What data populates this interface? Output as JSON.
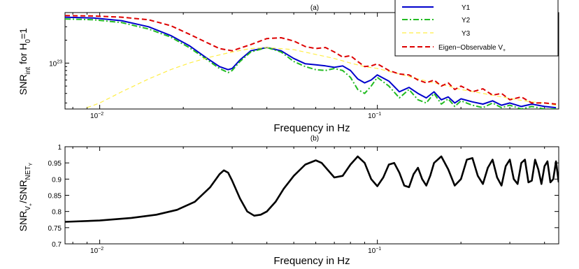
{
  "chart_data": [
    {
      "type": "line",
      "panel_label": "(a)",
      "xlabel": "Frequency in Hz",
      "ylabel_parts": {
        "main": "SNR",
        "sub1": "int",
        "mid": " for H",
        "sub2": "0",
        "tail": "=1"
      },
      "x_scale": "log",
      "y_scale": "log",
      "xlim": [
        0.0075,
        0.45
      ],
      "ylim": [
        0.25,
        4.6
      ],
      "y_unit_note": "values in units of 10^23",
      "x_ticks": [
        {
          "value": 0.01,
          "base": "10",
          "exp": "−2"
        },
        {
          "value": 0.1,
          "base": "10",
          "exp": "−1"
        }
      ],
      "y_ticks": [
        {
          "value": 1,
          "base": "10",
          "exp": "23"
        }
      ],
      "grid": false,
      "legend_position": "top-right",
      "legend": [
        "Y1",
        "Y2",
        "Y3",
        "Eigen−Observable V"
      ],
      "legend_last_subscript": "+",
      "series": [
        {
          "name": "Y1",
          "color": "#0000cc",
          "dash": "solid",
          "x": [
            0.0075,
            0.0095,
            0.012,
            0.015,
            0.018,
            0.021,
            0.024,
            0.027,
            0.029,
            0.03,
            0.032,
            0.035,
            0.04,
            0.045,
            0.05,
            0.055,
            0.06,
            0.065,
            0.07,
            0.075,
            0.08,
            0.085,
            0.09,
            0.095,
            0.1,
            0.11,
            0.12,
            0.13,
            0.14,
            0.15,
            0.16,
            0.17,
            0.18,
            0.19,
            0.2,
            0.22,
            0.24,
            0.26,
            0.28,
            0.3,
            0.33,
            0.36,
            0.4,
            0.44
          ],
          "y": [
            4.0,
            3.9,
            3.6,
            3.0,
            2.3,
            1.7,
            1.2,
            0.9,
            0.82,
            0.85,
            1.1,
            1.45,
            1.6,
            1.45,
            1.15,
            0.98,
            0.95,
            0.92,
            0.88,
            0.92,
            0.8,
            0.62,
            0.55,
            0.6,
            0.7,
            0.58,
            0.42,
            0.48,
            0.4,
            0.35,
            0.42,
            0.33,
            0.36,
            0.3,
            0.34,
            0.31,
            0.29,
            0.32,
            0.28,
            0.3,
            0.27,
            0.29,
            0.27,
            0.26
          ]
        },
        {
          "name": "Y2",
          "color": "#22bb22",
          "dash": "dashdot",
          "x": [
            0.0075,
            0.0095,
            0.012,
            0.015,
            0.018,
            0.021,
            0.024,
            0.027,
            0.029,
            0.03,
            0.032,
            0.035,
            0.04,
            0.045,
            0.05,
            0.055,
            0.06,
            0.065,
            0.07,
            0.075,
            0.08,
            0.085,
            0.09,
            0.095,
            0.1,
            0.11,
            0.12,
            0.13,
            0.14,
            0.15,
            0.16,
            0.17,
            0.18,
            0.19,
            0.2,
            0.22,
            0.24,
            0.26,
            0.28,
            0.3,
            0.33,
            0.36,
            0.4,
            0.44
          ],
          "y": [
            3.8,
            3.7,
            3.4,
            2.8,
            2.2,
            1.6,
            1.15,
            0.85,
            0.75,
            0.8,
            1.05,
            1.4,
            1.6,
            1.4,
            1.05,
            0.9,
            0.82,
            0.8,
            0.85,
            0.8,
            0.65,
            0.45,
            0.4,
            0.5,
            0.65,
            0.5,
            0.35,
            0.45,
            0.33,
            0.3,
            0.4,
            0.29,
            0.34,
            0.27,
            0.32,
            0.28,
            0.26,
            0.3,
            0.26,
            0.28,
            0.25,
            0.27,
            0.25,
            0.25
          ]
        },
        {
          "name": "Y3",
          "color": "#ffee44",
          "dash": "dashed",
          "x": [
            0.009,
            0.01,
            0.012,
            0.015,
            0.018,
            0.021,
            0.025,
            0.03,
            0.035,
            0.04,
            0.05,
            0.06,
            0.07,
            0.08,
            0.09,
            0.1,
            0.12,
            0.14,
            0.16,
            0.18,
            0.2,
            0.24,
            0.28,
            0.32,
            0.36,
            0.4,
            0.44
          ],
          "y": [
            0.26,
            0.3,
            0.42,
            0.62,
            0.82,
            1.0,
            1.2,
            1.4,
            1.55,
            1.6,
            1.5,
            1.3,
            1.15,
            1.0,
            0.9,
            0.85,
            0.72,
            0.62,
            0.55,
            0.5,
            0.45,
            0.4,
            0.36,
            0.33,
            0.31,
            0.3,
            0.28
          ]
        },
        {
          "name": "Eigen−Observable V+",
          "color": "#dd0000",
          "dash": "dashed",
          "x": [
            0.0075,
            0.0095,
            0.012,
            0.015,
            0.018,
            0.021,
            0.024,
            0.027,
            0.03,
            0.035,
            0.04,
            0.045,
            0.05,
            0.055,
            0.06,
            0.065,
            0.07,
            0.075,
            0.08,
            0.085,
            0.09,
            0.095,
            0.1,
            0.11,
            0.12,
            0.13,
            0.14,
            0.15,
            0.16,
            0.17,
            0.18,
            0.19,
            0.2,
            0.22,
            0.24,
            0.26,
            0.28,
            0.3,
            0.33,
            0.36,
            0.4,
            0.44
          ],
          "y": [
            4.2,
            4.15,
            4.0,
            3.7,
            3.1,
            2.4,
            1.9,
            1.55,
            1.45,
            1.75,
            2.1,
            2.15,
            1.95,
            1.65,
            1.55,
            1.6,
            1.4,
            1.2,
            1.25,
            1.05,
            0.9,
            0.92,
            0.98,
            0.8,
            0.72,
            0.7,
            0.6,
            0.55,
            0.6,
            0.5,
            0.55,
            0.45,
            0.5,
            0.42,
            0.46,
            0.38,
            0.4,
            0.33,
            0.36,
            0.3,
            0.3,
            0.29
          ]
        }
      ]
    },
    {
      "type": "line",
      "panel_label": "(b)",
      "xlabel": "Frequency in Hz",
      "ylabel_parts": {
        "main": "SNR",
        "sub1": "V",
        "subsub": "+",
        "mid": "/SNR",
        "sub2": "NET",
        "sub2sub": "Y"
      },
      "x_scale": "log",
      "xlim": [
        0.0075,
        0.45
      ],
      "ylim": [
        0.7,
        1.0
      ],
      "x_ticks": [
        {
          "value": 0.01,
          "base": "10",
          "exp": "−2"
        },
        {
          "value": 0.1,
          "base": "10",
          "exp": "−1"
        }
      ],
      "y_ticks": [
        0.7,
        0.75,
        0.8,
        0.85,
        0.9,
        0.95,
        1
      ],
      "y_tick_labels": [
        "0.7",
        "0.75",
        "0.8",
        "0.85",
        "0.9",
        "0.95",
        "1"
      ],
      "grid": false,
      "series": [
        {
          "color": "#000000",
          "dash": "solid",
          "x": [
            0.0075,
            0.01,
            0.013,
            0.016,
            0.019,
            0.022,
            0.025,
            0.027,
            0.028,
            0.029,
            0.03,
            0.032,
            0.034,
            0.036,
            0.038,
            0.04,
            0.043,
            0.046,
            0.05,
            0.055,
            0.06,
            0.063,
            0.066,
            0.07,
            0.075,
            0.08,
            0.085,
            0.09,
            0.095,
            0.1,
            0.105,
            0.11,
            0.115,
            0.12,
            0.125,
            0.13,
            0.135,
            0.14,
            0.145,
            0.15,
            0.155,
            0.16,
            0.17,
            0.18,
            0.19,
            0.2,
            0.21,
            0.22,
            0.23,
            0.24,
            0.25,
            0.26,
            0.27,
            0.28,
            0.29,
            0.3,
            0.31,
            0.32,
            0.33,
            0.34,
            0.35,
            0.36,
            0.37,
            0.38,
            0.39,
            0.4,
            0.41,
            0.42,
            0.43,
            0.44,
            0.45
          ],
          "y": [
            0.768,
            0.772,
            0.78,
            0.79,
            0.805,
            0.83,
            0.875,
            0.915,
            0.927,
            0.92,
            0.895,
            0.84,
            0.8,
            0.787,
            0.79,
            0.8,
            0.83,
            0.87,
            0.91,
            0.945,
            0.958,
            0.95,
            0.93,
            0.905,
            0.91,
            0.945,
            0.97,
            0.95,
            0.9,
            0.878,
            0.905,
            0.945,
            0.95,
            0.92,
            0.88,
            0.875,
            0.915,
            0.935,
            0.9,
            0.88,
            0.91,
            0.95,
            0.97,
            0.93,
            0.88,
            0.9,
            0.96,
            0.965,
            0.91,
            0.885,
            0.935,
            0.96,
            0.905,
            0.88,
            0.94,
            0.96,
            0.9,
            0.885,
            0.95,
            0.96,
            0.89,
            0.895,
            0.96,
            0.93,
            0.885,
            0.94,
            0.955,
            0.89,
            0.9,
            0.955,
            0.89
          ]
        }
      ]
    }
  ]
}
